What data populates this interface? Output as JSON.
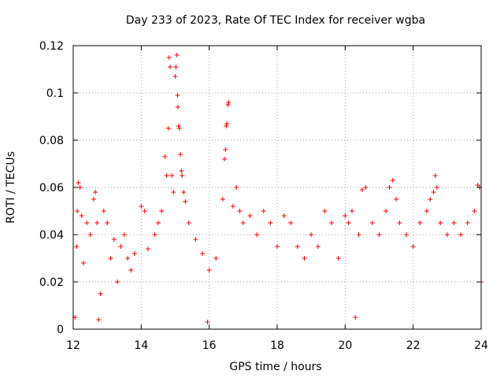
{
  "chart_data": {
    "type": "scatter",
    "title": "Day 233 of 2023, Rate Of TEC Index for receiver wgba",
    "xlabel": "GPS time / hours",
    "ylabel": "ROTI / TECUs",
    "xlim": [
      12,
      24
    ],
    "ylim": [
      0,
      0.12
    ],
    "xticks": [
      12,
      14,
      16,
      18,
      20,
      22,
      24
    ],
    "xtick_labels": [
      "12",
      "14",
      "16",
      "18",
      "20",
      "22",
      "24"
    ],
    "yticks": [
      0,
      0.02,
      0.04,
      0.06,
      0.08,
      0.1,
      0.12
    ],
    "ytick_labels": [
      "0",
      "0.02",
      "0.04",
      "0.06",
      "0.08",
      "0.1",
      "0.12"
    ],
    "grid": true,
    "marker": "+",
    "color": "#ff0000",
    "series": [
      {
        "name": "ROTI",
        "points": [
          [
            12.05,
            0.005
          ],
          [
            12.1,
            0.035
          ],
          [
            12.12,
            0.05
          ],
          [
            12.15,
            0.062
          ],
          [
            12.2,
            0.06
          ],
          [
            12.25,
            0.048
          ],
          [
            12.3,
            0.028
          ],
          [
            12.4,
            0.045
          ],
          [
            12.5,
            0.04
          ],
          [
            12.6,
            0.055
          ],
          [
            12.65,
            0.058
          ],
          [
            12.7,
            0.045
          ],
          [
            12.75,
            0.004
          ],
          [
            12.8,
            0.015
          ],
          [
            12.9,
            0.05
          ],
          [
            13.0,
            0.045
          ],
          [
            13.1,
            0.03
          ],
          [
            13.2,
            0.038
          ],
          [
            13.3,
            0.02
          ],
          [
            13.4,
            0.035
          ],
          [
            13.5,
            0.04
          ],
          [
            13.6,
            0.03
          ],
          [
            13.7,
            0.025
          ],
          [
            13.8,
            0.032
          ],
          [
            14.0,
            0.052
          ],
          [
            14.1,
            0.05
          ],
          [
            14.2,
            0.034
          ],
          [
            14.4,
            0.04
          ],
          [
            14.5,
            0.045
          ],
          [
            14.6,
            0.05
          ],
          [
            14.7,
            0.073
          ],
          [
            14.75,
            0.065
          ],
          [
            14.8,
            0.085
          ],
          [
            14.82,
            0.115
          ],
          [
            14.85,
            0.111
          ],
          [
            14.9,
            0.065
          ],
          [
            14.95,
            0.058
          ],
          [
            15.0,
            0.107
          ],
          [
            15.02,
            0.111
          ],
          [
            15.05,
            0.116
          ],
          [
            15.07,
            0.099
          ],
          [
            15.08,
            0.094
          ],
          [
            15.1,
            0.086
          ],
          [
            15.12,
            0.085
          ],
          [
            15.15,
            0.074
          ],
          [
            15.18,
            0.067
          ],
          [
            15.2,
            0.065
          ],
          [
            15.25,
            0.058
          ],
          [
            15.3,
            0.054
          ],
          [
            15.4,
            0.045
          ],
          [
            15.6,
            0.038
          ],
          [
            15.8,
            0.032
          ],
          [
            15.95,
            0.003
          ],
          [
            16.0,
            0.025
          ],
          [
            16.2,
            0.03
          ],
          [
            16.4,
            0.055
          ],
          [
            16.45,
            0.072
          ],
          [
            16.48,
            0.076
          ],
          [
            16.5,
            0.086
          ],
          [
            16.52,
            0.087
          ],
          [
            16.55,
            0.095
          ],
          [
            16.57,
            0.096
          ],
          [
            16.7,
            0.052
          ],
          [
            16.8,
            0.06
          ],
          [
            16.9,
            0.05
          ],
          [
            17.0,
            0.045
          ],
          [
            17.2,
            0.048
          ],
          [
            17.4,
            0.04
          ],
          [
            17.6,
            0.05
          ],
          [
            17.8,
            0.045
          ],
          [
            18.0,
            0.035
          ],
          [
            18.2,
            0.048
          ],
          [
            18.4,
            0.045
          ],
          [
            18.6,
            0.035
          ],
          [
            18.8,
            0.03
          ],
          [
            19.0,
            0.04
          ],
          [
            19.2,
            0.035
          ],
          [
            19.4,
            0.05
          ],
          [
            19.6,
            0.045
          ],
          [
            19.8,
            0.03
          ],
          [
            20.0,
            0.048
          ],
          [
            20.1,
            0.045
          ],
          [
            20.2,
            0.05
          ],
          [
            20.3,
            0.005
          ],
          [
            20.4,
            0.04
          ],
          [
            20.5,
            0.059
          ],
          [
            20.6,
            0.06
          ],
          [
            20.8,
            0.045
          ],
          [
            21.0,
            0.04
          ],
          [
            21.2,
            0.05
          ],
          [
            21.3,
            0.06
          ],
          [
            21.4,
            0.063
          ],
          [
            21.5,
            0.055
          ],
          [
            21.6,
            0.045
          ],
          [
            21.8,
            0.04
          ],
          [
            22.0,
            0.035
          ],
          [
            22.2,
            0.045
          ],
          [
            22.4,
            0.05
          ],
          [
            22.5,
            0.055
          ],
          [
            22.6,
            0.058
          ],
          [
            22.65,
            0.065
          ],
          [
            22.7,
            0.06
          ],
          [
            22.8,
            0.045
          ],
          [
            23.0,
            0.04
          ],
          [
            23.2,
            0.045
          ],
          [
            23.4,
            0.04
          ],
          [
            23.6,
            0.045
          ],
          [
            23.8,
            0.05
          ],
          [
            23.9,
            0.061
          ],
          [
            23.95,
            0.06
          ],
          [
            24.0,
            0.02
          ]
        ]
      }
    ]
  }
}
